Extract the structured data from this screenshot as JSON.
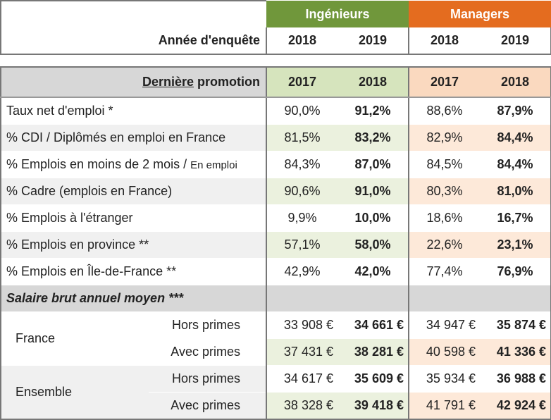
{
  "header": {
    "groups": {
      "ingenieurs": "Ingénieurs",
      "managers": "Managers"
    },
    "survey_label": "Année d'enquête",
    "survey_years": [
      "2018",
      "2019",
      "2018",
      "2019"
    ]
  },
  "promo": {
    "label_underlined": "Dernière",
    "label_rest": " promotion",
    "years": [
      "2017",
      "2018",
      "2017",
      "2018"
    ]
  },
  "rows": [
    {
      "label": "Taux net d'emploi *",
      "label_small": "",
      "values": [
        "90,0%",
        "91,2%",
        "88,6%",
        "87,9%"
      ]
    },
    {
      "label": "% CDI / Diplômés en emploi en France",
      "label_small": "",
      "values": [
        "81,5%",
        "83,2%",
        "82,9%",
        "84,4%"
      ]
    },
    {
      "label": "% Emplois en moins de 2 mois / ",
      "label_small": "En emploi",
      "values": [
        "84,3%",
        "87,0%",
        "84,5%",
        "84,4%"
      ]
    },
    {
      "label": "% Cadre (emplois en France)",
      "label_small": "",
      "values": [
        "90,6%",
        "91,0%",
        "80,3%",
        "81,0%"
      ]
    },
    {
      "label": "% Emplois à l'étranger",
      "label_small": "",
      "values": [
        "9,9%",
        "10,0%",
        "18,6%",
        "16,7%"
      ]
    },
    {
      "label": "% Emplois en province **",
      "label_small": "",
      "values": [
        "57,1%",
        "58,0%",
        "22,6%",
        "23,1%"
      ]
    },
    {
      "label": "% Emplois en Île-de-France **",
      "label_small": "",
      "values": [
        "42,9%",
        "42,0%",
        "77,4%",
        "76,9%"
      ]
    }
  ],
  "salary": {
    "title": "Salaire brut annuel moyen ***",
    "groups": [
      {
        "region": "France",
        "lines": [
          {
            "kind": "Hors primes",
            "values": [
              "33 908 €",
              "34 661 €",
              "34 947 €",
              "35 874 €"
            ]
          },
          {
            "kind": "Avec primes",
            "values": [
              "37 431 €",
              "38 281 €",
              "40 598 €",
              "41 336 €"
            ]
          }
        ]
      },
      {
        "region": "Ensemble",
        "lines": [
          {
            "kind": "Hors primes",
            "values": [
              "34 617 €",
              "35 609 €",
              "35 934 €",
              "36 988 €"
            ]
          },
          {
            "kind": "Avec primes",
            "values": [
              "38 328 €",
              "39 418 €",
              "41 791 €",
              "42 924 €"
            ]
          }
        ]
      }
    ]
  },
  "colors": {
    "ingenieurs": "#70973b",
    "managers": "#e46c1f",
    "ingenieurs_light": "#d6e4bd",
    "managers_light": "#fad9bf"
  }
}
